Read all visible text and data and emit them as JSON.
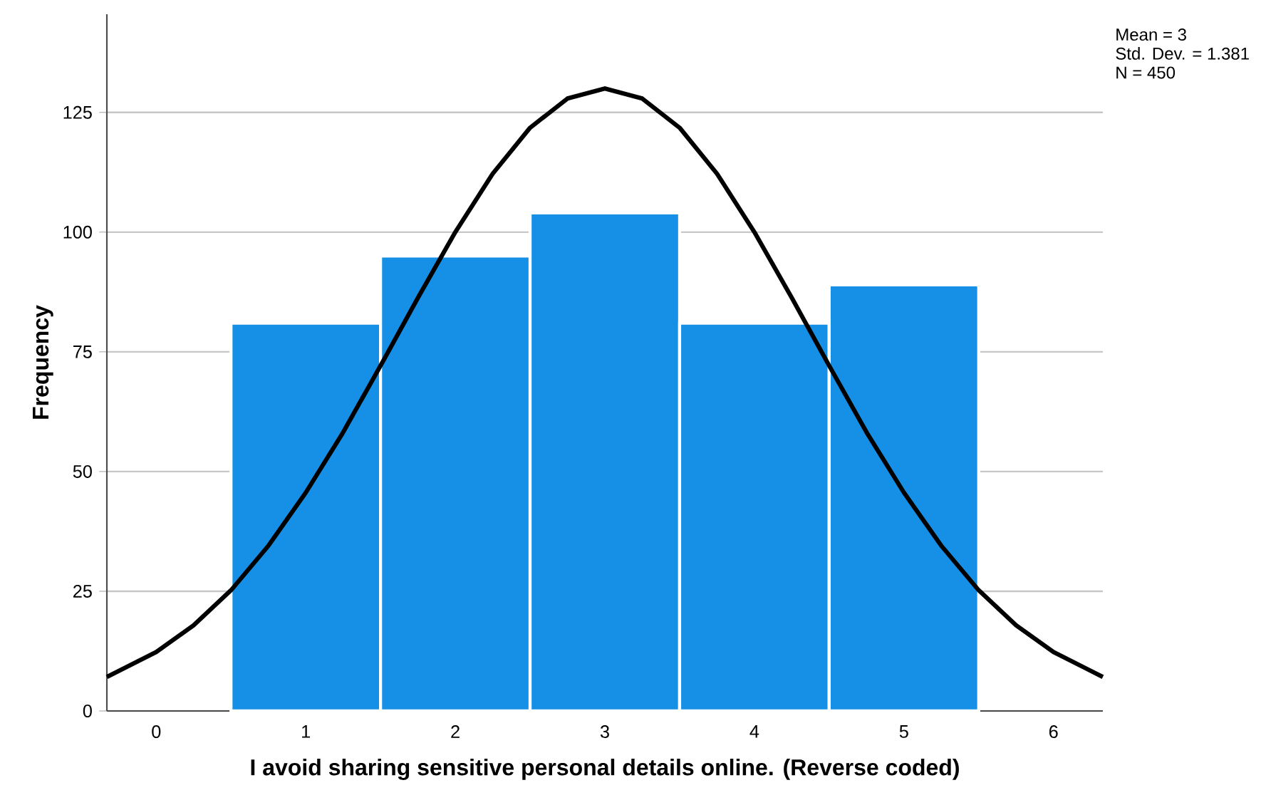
{
  "chart_data": {
    "type": "histogram",
    "xlabel": "I avoid sharing sensitive personal details online. (Reverse coded)",
    "ylabel": "Frequency",
    "bins": [
      0.5,
      1.5,
      2.5,
      3.5,
      4.5,
      5.5
    ],
    "values": [
      81,
      95,
      104,
      81,
      89
    ],
    "color": "#1590e6",
    "series": [
      {
        "type": "line",
        "color": "#000000",
        "x": [
          -0.33,
          0,
          0.25,
          0.5,
          0.75,
          1,
          1.25,
          1.5,
          1.75,
          2,
          2.25,
          2.5,
          2.75,
          3,
          3.25,
          3.5,
          3.75,
          4,
          4.25,
          4.5,
          4.75,
          5,
          5.25,
          5.5,
          5.75,
          6,
          6.33
        ],
        "values": [
          7.1,
          12.3,
          17.9,
          25.2,
          34.5,
          45.6,
          58.2,
          72.1,
          86.3,
          100.0,
          112.2,
          121.8,
          127.9,
          130.0,
          127.9,
          121.8,
          112.2,
          100.0,
          86.3,
          72.1,
          58.2,
          45.6,
          34.5,
          25.2,
          17.9,
          12.3,
          7.1
        ]
      }
    ],
    "xlim": [
      -0.33,
      6.33
    ],
    "ylim": [
      0,
      145.5
    ],
    "xticks": [
      0,
      1,
      2,
      3,
      4,
      5,
      6
    ],
    "yticks": [
      0,
      25,
      50,
      75,
      100,
      125
    ],
    "grid": "y",
    "annotations": [
      "Mean = 3",
      "Std. Dev. = 1.381",
      "N = 450"
    ]
  }
}
